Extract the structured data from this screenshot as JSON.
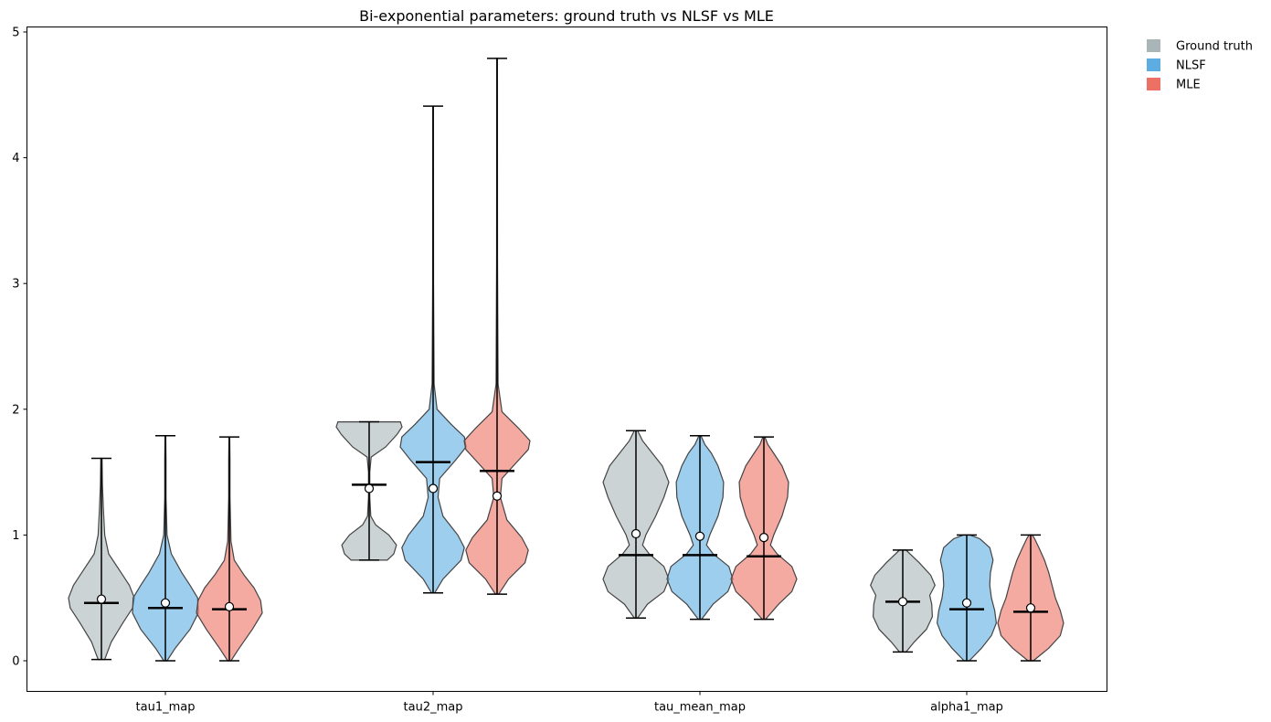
{
  "chart_data": {
    "type": "violin",
    "title": "Bi-exponential parameters: ground truth vs NLSF vs MLE",
    "xlabel": "",
    "ylabel": "",
    "ylim": [
      -0.24,
      5.02
    ],
    "yticks": [
      0,
      1,
      2,
      3,
      4,
      5
    ],
    "categories": [
      "tau1_map",
      "tau2_map",
      "tau_mean_map",
      "alpha1_map"
    ],
    "legend": {
      "placement": "outside-top-right"
    },
    "grid": false,
    "series": [
      {
        "name": "Ground truth",
        "color": "#a9b5b7",
        "stats": [
          {
            "min": 0.01,
            "max": 1.61,
            "median": 0.46,
            "mean": 0.49,
            "density": [
              [
                0.01,
                0.1
              ],
              [
                0.15,
                0.3
              ],
              [
                0.3,
                0.65
              ],
              [
                0.42,
                0.95
              ],
              [
                0.5,
                1.0
              ],
              [
                0.6,
                0.85
              ],
              [
                0.7,
                0.6
              ],
              [
                0.85,
                0.22
              ],
              [
                1.0,
                0.1
              ],
              [
                1.2,
                0.06
              ],
              [
                1.4,
                0.03
              ],
              [
                1.61,
                0.02
              ]
            ]
          },
          {
            "min": 0.8,
            "max": 1.9,
            "median": 1.4,
            "mean": 1.37,
            "density": [
              [
                0.8,
                0.55
              ],
              [
                0.85,
                0.75
              ],
              [
                0.92,
                0.83
              ],
              [
                1.0,
                0.6
              ],
              [
                1.08,
                0.2
              ],
              [
                1.15,
                0.05
              ],
              [
                1.3,
                0.02
              ],
              [
                1.5,
                0.02
              ],
              [
                1.62,
                0.06
              ],
              [
                1.7,
                0.5
              ],
              [
                1.8,
                0.85
              ],
              [
                1.86,
                1.0
              ],
              [
                1.9,
                0.95
              ]
            ]
          },
          {
            "min": 0.34,
            "max": 1.83,
            "median": 0.84,
            "mean": 1.01,
            "density": [
              [
                0.34,
                0.05
              ],
              [
                0.45,
                0.35
              ],
              [
                0.55,
                0.85
              ],
              [
                0.65,
                1.0
              ],
              [
                0.75,
                0.85
              ],
              [
                0.85,
                0.4
              ],
              [
                0.92,
                0.2
              ],
              [
                1.0,
                0.3
              ],
              [
                1.15,
                0.6
              ],
              [
                1.3,
                0.85
              ],
              [
                1.42,
                1.0
              ],
              [
                1.55,
                0.8
              ],
              [
                1.65,
                0.5
              ],
              [
                1.75,
                0.2
              ],
              [
                1.83,
                0.05
              ]
            ]
          },
          {
            "min": 0.07,
            "max": 0.88,
            "median": 0.47,
            "mean": 0.47,
            "density": [
              [
                0.07,
                0.1
              ],
              [
                0.15,
                0.35
              ],
              [
                0.25,
                0.72
              ],
              [
                0.35,
                0.9
              ],
              [
                0.45,
                0.88
              ],
              [
                0.52,
                0.82
              ],
              [
                0.6,
                0.98
              ],
              [
                0.68,
                0.85
              ],
              [
                0.78,
                0.5
              ],
              [
                0.88,
                0.1
              ]
            ]
          }
        ]
      },
      {
        "name": "NLSF",
        "color": "#5dade2",
        "stats": [
          {
            "min": 0.0,
            "max": 1.79,
            "median": 0.42,
            "mean": 0.46,
            "density": [
              [
                0.0,
                0.05
              ],
              [
                0.1,
                0.3
              ],
              [
                0.25,
                0.75
              ],
              [
                0.38,
                1.0
              ],
              [
                0.5,
                0.98
              ],
              [
                0.6,
                0.75
              ],
              [
                0.7,
                0.5
              ],
              [
                0.85,
                0.18
              ],
              [
                1.0,
                0.05
              ],
              [
                1.3,
                0.02
              ],
              [
                1.6,
                0.02
              ],
              [
                1.79,
                0.01
              ]
            ]
          },
          {
            "min": 0.54,
            "max": 4.41,
            "median": 1.58,
            "mean": 1.37,
            "density": [
              [
                0.54,
                0.05
              ],
              [
                0.65,
                0.3
              ],
              [
                0.8,
                0.85
              ],
              [
                0.9,
                0.95
              ],
              [
                1.0,
                0.75
              ],
              [
                1.15,
                0.3
              ],
              [
                1.3,
                0.15
              ],
              [
                1.45,
                0.2
              ],
              [
                1.6,
                0.7
              ],
              [
                1.7,
                1.0
              ],
              [
                1.78,
                0.95
              ],
              [
                1.88,
                0.55
              ],
              [
                2.0,
                0.12
              ],
              [
                2.2,
                0.03
              ],
              [
                3.0,
                0.015
              ],
              [
                4.41,
                0.01
              ]
            ]
          },
          {
            "min": 0.33,
            "max": 1.79,
            "median": 0.84,
            "mean": 0.99,
            "density": [
              [
                0.33,
                0.05
              ],
              [
                0.45,
                0.4
              ],
              [
                0.55,
                0.85
              ],
              [
                0.65,
                1.0
              ],
              [
                0.75,
                0.88
              ],
              [
                0.85,
                0.4
              ],
              [
                0.92,
                0.2
              ],
              [
                1.0,
                0.3
              ],
              [
                1.15,
                0.55
              ],
              [
                1.3,
                0.7
              ],
              [
                1.42,
                0.72
              ],
              [
                1.55,
                0.55
              ],
              [
                1.65,
                0.35
              ],
              [
                1.72,
                0.15
              ],
              [
                1.79,
                0.03
              ]
            ]
          },
          {
            "min": 0.0,
            "max": 1.0,
            "median": 0.41,
            "mean": 0.46,
            "density": [
              [
                0.0,
                0.08
              ],
              [
                0.1,
                0.45
              ],
              [
                0.2,
                0.75
              ],
              [
                0.3,
                0.9
              ],
              [
                0.4,
                0.85
              ],
              [
                0.5,
                0.75
              ],
              [
                0.6,
                0.7
              ],
              [
                0.7,
                0.72
              ],
              [
                0.8,
                0.8
              ],
              [
                0.9,
                0.7
              ],
              [
                0.97,
                0.4
              ],
              [
                1.0,
                0.1
              ]
            ]
          }
        ]
      },
      {
        "name": "MLE",
        "color": "#ec7063",
        "stats": [
          {
            "min": 0.0,
            "max": 1.78,
            "median": 0.41,
            "mean": 0.43,
            "density": [
              [
                0.0,
                0.05
              ],
              [
                0.1,
                0.3
              ],
              [
                0.25,
                0.7
              ],
              [
                0.38,
                1.0
              ],
              [
                0.48,
                0.95
              ],
              [
                0.58,
                0.75
              ],
              [
                0.68,
                0.45
              ],
              [
                0.8,
                0.15
              ],
              [
                0.95,
                0.05
              ],
              [
                1.3,
                0.02
              ],
              [
                1.6,
                0.02
              ],
              [
                1.78,
                0.01
              ]
            ]
          },
          {
            "min": 0.53,
            "max": 4.79,
            "median": 1.51,
            "mean": 1.31,
            "density": [
              [
                0.53,
                0.05
              ],
              [
                0.65,
                0.35
              ],
              [
                0.78,
                0.85
              ],
              [
                0.88,
                0.95
              ],
              [
                0.98,
                0.75
              ],
              [
                1.12,
                0.3
              ],
              [
                1.3,
                0.1
              ],
              [
                1.45,
                0.15
              ],
              [
                1.58,
                0.6
              ],
              [
                1.68,
                0.95
              ],
              [
                1.75,
                1.0
              ],
              [
                1.85,
                0.65
              ],
              [
                1.98,
                0.15
              ],
              [
                2.2,
                0.03
              ],
              [
                3.2,
                0.015
              ],
              [
                4.79,
                0.01
              ]
            ]
          },
          {
            "min": 0.33,
            "max": 1.78,
            "median": 0.83,
            "mean": 0.98,
            "density": [
              [
                0.33,
                0.05
              ],
              [
                0.45,
                0.45
              ],
              [
                0.55,
                0.85
              ],
              [
                0.65,
                1.0
              ],
              [
                0.75,
                0.85
              ],
              [
                0.85,
                0.4
              ],
              [
                0.92,
                0.2
              ],
              [
                1.0,
                0.3
              ],
              [
                1.15,
                0.55
              ],
              [
                1.3,
                0.72
              ],
              [
                1.42,
                0.75
              ],
              [
                1.55,
                0.55
              ],
              [
                1.65,
                0.3
              ],
              [
                1.72,
                0.12
              ],
              [
                1.78,
                0.03
              ]
            ]
          },
          {
            "min": 0.0,
            "max": 1.0,
            "median": 0.39,
            "mean": 0.42,
            "density": [
              [
                0.0,
                0.08
              ],
              [
                0.1,
                0.55
              ],
              [
                0.2,
                0.9
              ],
              [
                0.3,
                1.0
              ],
              [
                0.4,
                0.9
              ],
              [
                0.5,
                0.75
              ],
              [
                0.6,
                0.65
              ],
              [
                0.7,
                0.55
              ],
              [
                0.8,
                0.42
              ],
              [
                0.9,
                0.25
              ],
              [
                0.97,
                0.12
              ],
              [
                1.0,
                0.05
              ]
            ]
          }
        ]
      }
    ]
  }
}
